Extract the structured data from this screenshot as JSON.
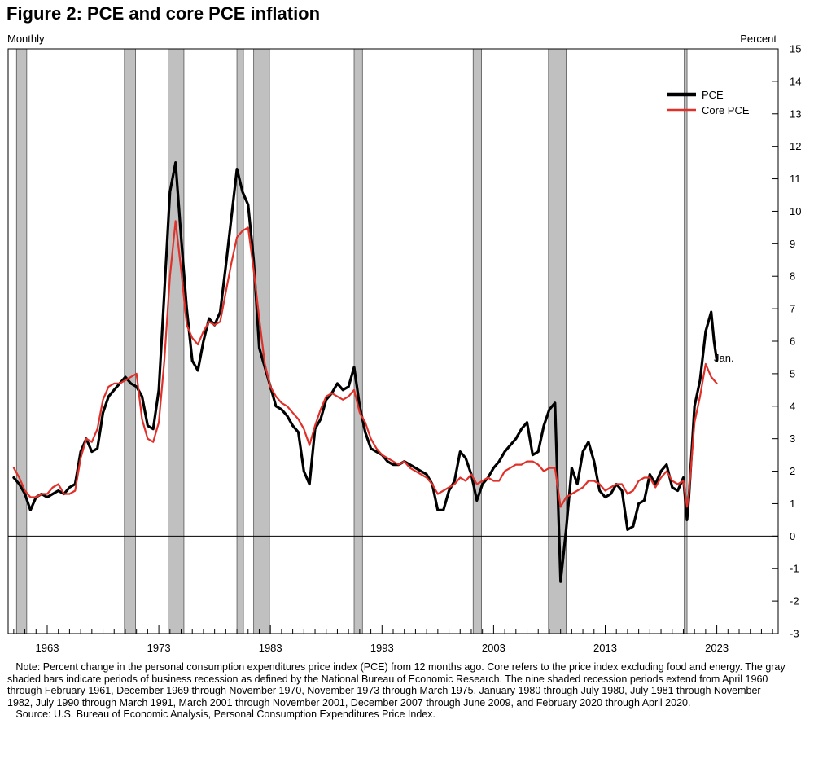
{
  "title": "Figure 2: PCE and core PCE inflation",
  "subtitle_left": "Monthly",
  "subtitle_right": "Percent",
  "annotation": "Jan.",
  "note": "Note: Percent change in the personal consumption expenditures price index (PCE) from 12 months ago. Core refers to the price index excluding food and energy. The gray shaded bars indicate periods of business recession as defined by the National Bureau of Economic Research. The nine shaded recession periods extend from April 1960 through February 1961, December 1969 through November 1970, November 1973 through March 1975, January 1980 through July 1980, July 1981 through November 1982, July 1990 through March 1991, March 2001 through November 2001, December 2007 through June 2009, and February 2020 through April 2020.",
  "source": "Source: U.S. Bureau of Economic Analysis, Personal Consumption Expenditures Price Index.",
  "colors": {
    "pce": "#000000",
    "core_pce": "#e0302a",
    "recession": "#c0c0c0"
  },
  "chart_data": {
    "type": "line",
    "xlim": [
      1959.5,
      2028.5
    ],
    "ylim": [
      -3,
      15
    ],
    "y_ticks": [
      -3,
      -2,
      -1,
      0,
      1,
      2,
      3,
      4,
      5,
      6,
      7,
      8,
      9,
      10,
      11,
      12,
      13,
      14,
      15
    ],
    "x_tick_labels": [
      "1963",
      "1973",
      "1983",
      "1993",
      "2003",
      "2013",
      "2023"
    ],
    "x_tick_label_years": [
      1963,
      1973,
      1983,
      1993,
      2003,
      2013,
      2023
    ],
    "legend_position": "top-right",
    "legend": [
      "PCE",
      "Core PCE"
    ],
    "recessions": [
      {
        "start": "1960-04",
        "end": "1961-02"
      },
      {
        "start": "1969-12",
        "end": "1970-11"
      },
      {
        "start": "1973-11",
        "end": "1975-03"
      },
      {
        "start": "1980-01",
        "end": "1980-07"
      },
      {
        "start": "1981-07",
        "end": "1982-11"
      },
      {
        "start": "1990-07",
        "end": "1991-03"
      },
      {
        "start": "2001-03",
        "end": "2001-11"
      },
      {
        "start": "2007-12",
        "end": "2009-06"
      },
      {
        "start": "2020-02",
        "end": "2020-04"
      }
    ],
    "series": [
      {
        "name": "PCE",
        "x": [
          1960.0,
          1960.5,
          1961.0,
          1961.5,
          1962.0,
          1962.5,
          1963.0,
          1963.5,
          1964.0,
          1964.5,
          1965.0,
          1965.5,
          1966.0,
          1966.5,
          1967.0,
          1967.5,
          1968.0,
          1968.5,
          1969.0,
          1969.5,
          1970.0,
          1970.5,
          1971.0,
          1971.5,
          1972.0,
          1972.5,
          1973.0,
          1973.5,
          1974.0,
          1974.5,
          1975.0,
          1975.5,
          1976.0,
          1976.5,
          1977.0,
          1977.5,
          1978.0,
          1978.5,
          1979.0,
          1979.5,
          1980.0,
          1980.5,
          1981.0,
          1981.5,
          1982.0,
          1982.5,
          1983.0,
          1983.5,
          1984.0,
          1984.5,
          1985.0,
          1985.5,
          1986.0,
          1986.5,
          1987.0,
          1987.5,
          1988.0,
          1988.5,
          1989.0,
          1989.5,
          1990.0,
          1990.5,
          1991.0,
          1991.5,
          1992.0,
          1992.5,
          1993.0,
          1993.5,
          1994.0,
          1994.5,
          1995.0,
          1995.5,
          1996.0,
          1996.5,
          1997.0,
          1997.5,
          1998.0,
          1998.5,
          1999.0,
          1999.5,
          2000.0,
          2000.5,
          2001.0,
          2001.5,
          2002.0,
          2002.5,
          2003.0,
          2003.5,
          2004.0,
          2004.5,
          2005.0,
          2005.5,
          2006.0,
          2006.5,
          2007.0,
          2007.5,
          2008.0,
          2008.5,
          2009.0,
          2009.5,
          2010.0,
          2010.5,
          2011.0,
          2011.5,
          2012.0,
          2012.5,
          2013.0,
          2013.5,
          2014.0,
          2014.5,
          2015.0,
          2015.5,
          2016.0,
          2016.5,
          2017.0,
          2017.5,
          2018.0,
          2018.5,
          2019.0,
          2019.5,
          2020.0,
          2020.33,
          2020.5,
          2021.0,
          2021.5,
          2022.0,
          2022.5,
          2022.75,
          2023.0
        ],
        "values": [
          1.8,
          1.6,
          1.3,
          0.8,
          1.2,
          1.3,
          1.2,
          1.3,
          1.4,
          1.3,
          1.5,
          1.6,
          2.6,
          3.0,
          2.6,
          2.7,
          3.8,
          4.3,
          4.5,
          4.7,
          4.9,
          4.7,
          4.6,
          4.3,
          3.4,
          3.3,
          4.5,
          7.5,
          10.6,
          11.5,
          9.2,
          7.0,
          5.4,
          5.1,
          6.0,
          6.7,
          6.5,
          6.9,
          8.3,
          9.8,
          11.3,
          10.6,
          10.2,
          8.5,
          5.8,
          5.2,
          4.6,
          4.0,
          3.9,
          3.7,
          3.4,
          3.2,
          2.0,
          1.6,
          3.3,
          3.6,
          4.2,
          4.4,
          4.7,
          4.5,
          4.6,
          5.2,
          4.0,
          3.2,
          2.7,
          2.6,
          2.5,
          2.3,
          2.2,
          2.2,
          2.3,
          2.2,
          2.1,
          2.0,
          1.9,
          1.6,
          0.8,
          0.8,
          1.4,
          1.7,
          2.6,
          2.4,
          1.9,
          1.1,
          1.6,
          1.8,
          2.1,
          2.3,
          2.6,
          2.8,
          3.0,
          3.3,
          3.5,
          2.5,
          2.6,
          3.4,
          3.9,
          4.1,
          -1.4,
          0.2,
          2.1,
          1.6,
          2.6,
          2.9,
          2.3,
          1.4,
          1.2,
          1.3,
          1.6,
          1.4,
          0.2,
          0.3,
          1.0,
          1.1,
          1.9,
          1.6,
          2.0,
          2.2,
          1.5,
          1.4,
          1.8,
          0.5,
          1.2,
          4.0,
          4.8,
          6.3,
          6.9,
          6.0,
          5.4
        ]
      },
      {
        "name": "Core PCE",
        "x": [
          1960.0,
          1960.5,
          1961.0,
          1961.5,
          1962.0,
          1962.5,
          1963.0,
          1963.5,
          1964.0,
          1964.5,
          1965.0,
          1965.5,
          1966.0,
          1966.5,
          1967.0,
          1967.5,
          1968.0,
          1968.5,
          1969.0,
          1969.5,
          1970.0,
          1970.5,
          1971.0,
          1971.5,
          1972.0,
          1972.5,
          1973.0,
          1973.5,
          1974.0,
          1974.5,
          1975.0,
          1975.5,
          1976.0,
          1976.5,
          1977.0,
          1977.5,
          1978.0,
          1978.5,
          1979.0,
          1979.5,
          1980.0,
          1980.5,
          1981.0,
          1981.5,
          1982.0,
          1982.5,
          1983.0,
          1983.5,
          1984.0,
          1984.5,
          1985.0,
          1985.5,
          1986.0,
          1986.5,
          1987.0,
          1987.5,
          1988.0,
          1988.5,
          1989.0,
          1989.5,
          1990.0,
          1990.5,
          1991.0,
          1991.5,
          1992.0,
          1992.5,
          1993.0,
          1993.5,
          1994.0,
          1994.5,
          1995.0,
          1995.5,
          1996.0,
          1996.5,
          1997.0,
          1997.5,
          1998.0,
          1998.5,
          1999.0,
          1999.5,
          2000.0,
          2000.5,
          2001.0,
          2001.5,
          2002.0,
          2002.5,
          2003.0,
          2003.5,
          2004.0,
          2004.5,
          2005.0,
          2005.5,
          2006.0,
          2006.5,
          2007.0,
          2007.5,
          2008.0,
          2008.5,
          2009.0,
          2009.5,
          2010.0,
          2010.5,
          2011.0,
          2011.5,
          2012.0,
          2012.5,
          2013.0,
          2013.5,
          2014.0,
          2014.5,
          2015.0,
          2015.5,
          2016.0,
          2016.5,
          2017.0,
          2017.5,
          2018.0,
          2018.5,
          2019.0,
          2019.5,
          2020.0,
          2020.33,
          2020.5,
          2021.0,
          2021.5,
          2022.0,
          2022.5,
          2022.75,
          2023.0
        ],
        "values": [
          2.1,
          1.8,
          1.4,
          1.2,
          1.2,
          1.3,
          1.3,
          1.5,
          1.6,
          1.3,
          1.3,
          1.4,
          2.4,
          3.0,
          2.9,
          3.3,
          4.2,
          4.6,
          4.7,
          4.7,
          4.8,
          4.9,
          5.0,
          3.6,
          3.0,
          2.9,
          3.5,
          5.4,
          8.0,
          9.7,
          8.2,
          6.5,
          6.1,
          5.9,
          6.3,
          6.6,
          6.5,
          6.6,
          7.5,
          8.4,
          9.2,
          9.4,
          9.5,
          8.2,
          6.7,
          5.3,
          4.6,
          4.3,
          4.1,
          4.0,
          3.8,
          3.6,
          3.3,
          2.8,
          3.4,
          3.9,
          4.3,
          4.4,
          4.3,
          4.2,
          4.3,
          4.5,
          3.8,
          3.5,
          3.0,
          2.7,
          2.5,
          2.4,
          2.3,
          2.2,
          2.3,
          2.1,
          2.0,
          1.9,
          1.8,
          1.6,
          1.3,
          1.4,
          1.5,
          1.6,
          1.8,
          1.7,
          1.9,
          1.6,
          1.7,
          1.8,
          1.7,
          1.7,
          2.0,
          2.1,
          2.2,
          2.2,
          2.3,
          2.3,
          2.2,
          2.0,
          2.1,
          2.1,
          0.9,
          1.2,
          1.3,
          1.4,
          1.5,
          1.7,
          1.7,
          1.6,
          1.4,
          1.5,
          1.6,
          1.6,
          1.3,
          1.4,
          1.7,
          1.8,
          1.8,
          1.5,
          1.8,
          2.0,
          1.7,
          1.6,
          1.7,
          0.9,
          1.3,
          3.5,
          4.3,
          5.3,
          4.9,
          4.8,
          4.7
        ]
      }
    ]
  }
}
